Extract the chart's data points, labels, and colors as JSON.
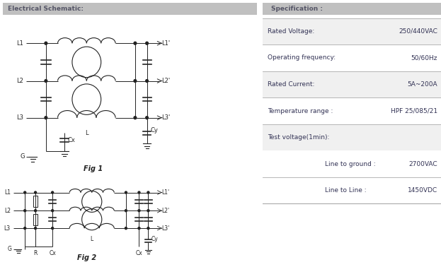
{
  "title_left": "Electrical Schematic:",
  "title_right": "Specification :",
  "spec_rows": [
    {
      "label": "Rated Voltage:",
      "value": "250/440VAC",
      "indent": false
    },
    {
      "label": "Operating frequency:",
      "value": "50/60Hz",
      "indent": false
    },
    {
      "label": "Rated Current:",
      "value": "5A~200A",
      "indent": false
    },
    {
      "label": "Temperature range :",
      "value": "HPF 25/085/21",
      "indent": false
    },
    {
      "label": "Test voltage(1min):",
      "value": "",
      "indent": false
    },
    {
      "label": "Line to ground :",
      "value": "2700VAC",
      "indent": true
    },
    {
      "label": "Line to Line :",
      "value": "1450VDC",
      "indent": true
    }
  ],
  "fig1_label": "Fig 1",
  "fig2_label": "Fig 2",
  "header_bg": "#c0c0c0",
  "header_text": "#555566",
  "text_color": "#333355",
  "line_color": "#222222",
  "bg_color": "#ffffff",
  "divider_color": "#aaaaaa"
}
